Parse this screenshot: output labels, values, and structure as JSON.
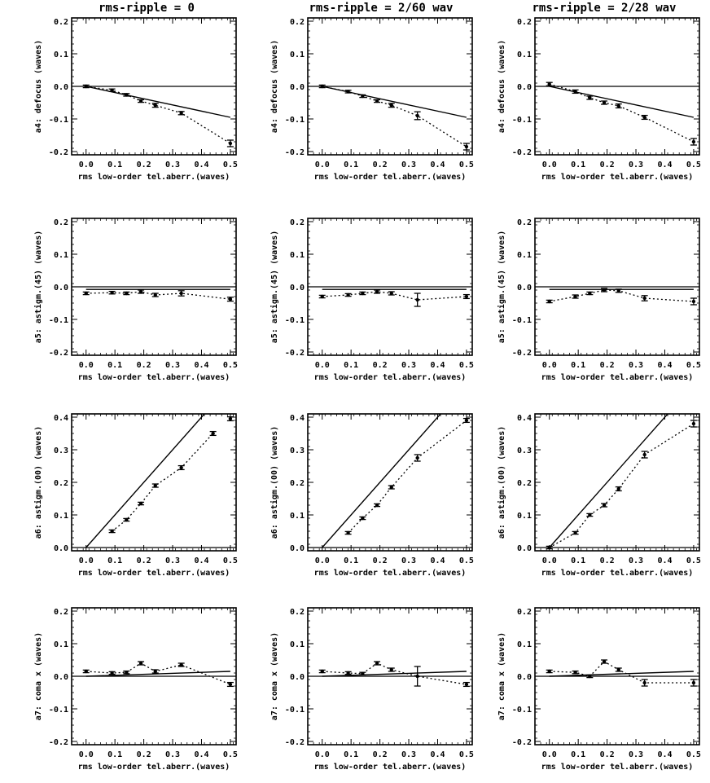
{
  "column_titles": [
    "rms-ripple = 0",
    "rms-ripple = 2/60 wav",
    "rms-ripple = 2/28 wav"
  ],
  "chart_data": [
    {
      "type": "line",
      "row": 0,
      "col": 0,
      "ylabel": "a4: defocus (waves)",
      "xlabel": "rms low-order tel.aberr.(waves)",
      "xticks": [
        "0.0",
        "0.1",
        "0.2",
        "0.3",
        "0.4",
        "0.5"
      ],
      "yticks": [
        "-0.2",
        "-0.1",
        "0.0",
        "0.1",
        "0.2"
      ],
      "xlim": [
        -0.05,
        0.52
      ],
      "ylim": [
        -0.21,
        0.21
      ],
      "series": [
        {
          "style": "dotted",
          "points": [
            [
              0.0,
              0.0
            ],
            [
              0.09,
              -0.012
            ],
            [
              0.14,
              -0.026
            ],
            [
              0.19,
              -0.045
            ],
            [
              0.24,
              -0.058
            ],
            [
              0.33,
              -0.082
            ],
            [
              0.5,
              -0.175
            ]
          ],
          "errors": [
            0.004,
            0.004,
            0.004,
            0.004,
            0.006,
            0.005,
            0.01
          ]
        },
        {
          "style": "solid",
          "points": [
            [
              0.0,
              0.0
            ],
            [
              0.5,
              -0.095
            ]
          ]
        }
      ]
    },
    {
      "type": "line",
      "row": 0,
      "col": 1,
      "ylabel": "a4: defocus (waves)",
      "xlabel": "rms low-order tel.aberr.(waves)",
      "xticks": [
        "0.0",
        "0.1",
        "0.2",
        "0.3",
        "0.4",
        "0.5"
      ],
      "yticks": [
        "-0.2",
        "-0.1",
        "0.0",
        "0.1",
        "0.2"
      ],
      "xlim": [
        -0.05,
        0.52
      ],
      "ylim": [
        -0.21,
        0.21
      ],
      "series": [
        {
          "style": "dotted",
          "points": [
            [
              0.0,
              0.0
            ],
            [
              0.09,
              -0.016
            ],
            [
              0.14,
              -0.03
            ],
            [
              0.19,
              -0.045
            ],
            [
              0.24,
              -0.058
            ],
            [
              0.33,
              -0.09
            ],
            [
              0.5,
              -0.185
            ]
          ],
          "errors": [
            0.004,
            0.004,
            0.004,
            0.004,
            0.006,
            0.012,
            0.01
          ]
        },
        {
          "style": "solid",
          "points": [
            [
              0.0,
              0.0
            ],
            [
              0.5,
              -0.095
            ]
          ]
        }
      ]
    },
    {
      "type": "line",
      "row": 0,
      "col": 2,
      "ylabel": "a4: defocus (waves)",
      "xlabel": "rms low-order tel.aberr.(waves)",
      "xticks": [
        "0.0",
        "0.1",
        "0.2",
        "0.3",
        "0.4",
        "0.5"
      ],
      "yticks": [
        "-0.2",
        "-0.1",
        "0.0",
        "0.1",
        "0.2"
      ],
      "xlim": [
        -0.05,
        0.52
      ],
      "ylim": [
        -0.21,
        0.21
      ],
      "series": [
        {
          "style": "dotted",
          "points": [
            [
              0.0,
              0.007
            ],
            [
              0.09,
              -0.016
            ],
            [
              0.14,
              -0.035
            ],
            [
              0.19,
              -0.05
            ],
            [
              0.24,
              -0.06
            ],
            [
              0.33,
              -0.095
            ],
            [
              0.5,
              -0.17
            ]
          ],
          "errors": [
            0.005,
            0.005,
            0.005,
            0.005,
            0.006,
            0.006,
            0.01
          ]
        },
        {
          "style": "solid",
          "points": [
            [
              0.0,
              0.0
            ],
            [
              0.5,
              -0.095
            ]
          ]
        }
      ]
    },
    {
      "type": "line",
      "row": 1,
      "col": 0,
      "ylabel": "a5: astigm.(45) (waves)",
      "xlabel": "rms low-order tel.aberr.(waves)",
      "xticks": [
        "0.0",
        "0.1",
        "0.2",
        "0.3",
        "0.4",
        "0.5"
      ],
      "yticks": [
        "-0.2",
        "-0.1",
        "0.0",
        "0.1",
        "0.2"
      ],
      "xlim": [
        -0.05,
        0.52
      ],
      "ylim": [
        -0.21,
        0.21
      ],
      "series": [
        {
          "style": "dotted",
          "points": [
            [
              0.0,
              -0.02
            ],
            [
              0.09,
              -0.018
            ],
            [
              0.14,
              -0.02
            ],
            [
              0.19,
              -0.015
            ],
            [
              0.24,
              -0.025
            ],
            [
              0.33,
              -0.02
            ],
            [
              0.5,
              -0.038
            ]
          ],
          "errors": [
            0.004,
            0.004,
            0.004,
            0.005,
            0.005,
            0.008,
            0.006
          ]
        },
        {
          "style": "solid",
          "points": [
            [
              0.0,
              -0.008
            ],
            [
              0.5,
              -0.008
            ]
          ]
        }
      ]
    },
    {
      "type": "line",
      "row": 1,
      "col": 1,
      "ylabel": "a5: astigm.(45) (waves)",
      "xlabel": "rms low-order tel.aberr.(waves)",
      "xticks": [
        "0.0",
        "0.1",
        "0.2",
        "0.3",
        "0.4",
        "0.5"
      ],
      "yticks": [
        "-0.2",
        "-0.1",
        "0.0",
        "0.1",
        "0.2"
      ],
      "xlim": [
        -0.05,
        0.52
      ],
      "ylim": [
        -0.21,
        0.21
      ],
      "series": [
        {
          "style": "dotted",
          "points": [
            [
              0.0,
              -0.03
            ],
            [
              0.09,
              -0.025
            ],
            [
              0.14,
              -0.02
            ],
            [
              0.19,
              -0.015
            ],
            [
              0.24,
              -0.02
            ],
            [
              0.33,
              -0.04
            ],
            [
              0.5,
              -0.03
            ]
          ],
          "errors": [
            0.004,
            0.004,
            0.004,
            0.005,
            0.005,
            0.02,
            0.006
          ]
        },
        {
          "style": "solid",
          "points": [
            [
              0.0,
              -0.008
            ],
            [
              0.5,
              -0.008
            ]
          ]
        }
      ]
    },
    {
      "type": "line",
      "row": 1,
      "col": 2,
      "ylabel": "a5: astigm.(45) (waves)",
      "xlabel": "rms low-order tel.aberr.(waves)",
      "xticks": [
        "0.0",
        "0.1",
        "0.2",
        "0.3",
        "0.4",
        "0.5"
      ],
      "yticks": [
        "-0.2",
        "-0.1",
        "0.0",
        "0.1",
        "0.2"
      ],
      "xlim": [
        -0.05,
        0.52
      ],
      "ylim": [
        -0.21,
        0.21
      ],
      "series": [
        {
          "style": "dotted",
          "points": [
            [
              0.0,
              -0.045
            ],
            [
              0.09,
              -0.03
            ],
            [
              0.14,
              -0.02
            ],
            [
              0.19,
              -0.01
            ],
            [
              0.24,
              -0.012
            ],
            [
              0.33,
              -0.035
            ],
            [
              0.5,
              -0.045
            ]
          ],
          "errors": [
            0.004,
            0.005,
            0.004,
            0.005,
            0.005,
            0.008,
            0.01
          ]
        },
        {
          "style": "solid",
          "points": [
            [
              0.0,
              -0.008
            ],
            [
              0.5,
              -0.008
            ]
          ]
        }
      ]
    },
    {
      "type": "line",
      "row": 2,
      "col": 0,
      "ylabel": "a6: astigm.(00) (waves)",
      "xlabel": "rms low-order tel.aberr.(waves)",
      "xticks": [
        "0.0",
        "0.1",
        "0.2",
        "0.3",
        "0.4",
        "0.5"
      ],
      "yticks": [
        "0.0",
        "0.1",
        "0.2",
        "0.3",
        "0.4"
      ],
      "xlim": [
        -0.05,
        0.52
      ],
      "ylim": [
        -0.01,
        0.41
      ],
      "series": [
        {
          "style": "dotted",
          "points": [
            [
              0.09,
              0.05
            ],
            [
              0.14,
              0.085
            ],
            [
              0.19,
              0.135
            ],
            [
              0.24,
              0.19
            ],
            [
              0.33,
              0.245
            ],
            [
              0.44,
              0.35
            ]
          ],
          "errors": [
            0.004,
            0.004,
            0.004,
            0.005,
            0.006,
            0.006
          ]
        },
        {
          "style": "solid",
          "points": [
            [
              0.0,
              0.0
            ],
            [
              0.42,
              0.42
            ]
          ]
        },
        {
          "style": "points",
          "points": [
            [
              0.5,
              0.395
            ]
          ],
          "errors": [
            0.006
          ]
        }
      ]
    },
    {
      "type": "line",
      "row": 2,
      "col": 1,
      "ylabel": "a6: astigm.(00) (waves)",
      "xlabel": "rms low-order tel.aberr.(waves)",
      "xticks": [
        "0.0",
        "0.1",
        "0.2",
        "0.3",
        "0.4",
        "0.5"
      ],
      "yticks": [
        "0.0",
        "0.1",
        "0.2",
        "0.3",
        "0.4"
      ],
      "xlim": [
        -0.05,
        0.52
      ],
      "ylim": [
        -0.01,
        0.41
      ],
      "series": [
        {
          "style": "dotted",
          "points": [
            [
              0.09,
              0.045
            ],
            [
              0.14,
              0.09
            ],
            [
              0.19,
              0.13
            ],
            [
              0.24,
              0.185
            ],
            [
              0.33,
              0.275
            ],
            [
              0.5,
              0.39
            ]
          ],
          "errors": [
            0.004,
            0.004,
            0.004,
            0.005,
            0.01,
            0.006
          ]
        },
        {
          "style": "solid",
          "points": [
            [
              0.0,
              0.0
            ],
            [
              0.42,
              0.42
            ]
          ]
        }
      ]
    },
    {
      "type": "line",
      "row": 2,
      "col": 2,
      "ylabel": "a6: astigm.(00) (waves)",
      "xlabel": "rms low-order tel.aberr.(waves)",
      "xticks": [
        "0.0",
        "0.1",
        "0.2",
        "0.3",
        "0.4",
        "0.5"
      ],
      "yticks": [
        "0.0",
        "0.1",
        "0.2",
        "0.3",
        "0.4"
      ],
      "xlim": [
        -0.05,
        0.52
      ],
      "ylim": [
        -0.01,
        0.41
      ],
      "series": [
        {
          "style": "dotted",
          "points": [
            [
              0.0,
              0.0
            ],
            [
              0.09,
              0.045
            ],
            [
              0.14,
              0.1
            ],
            [
              0.19,
              0.13
            ],
            [
              0.24,
              0.18
            ],
            [
              0.33,
              0.285
            ],
            [
              0.5,
              0.38
            ]
          ],
          "errors": [
            0.004,
            0.004,
            0.004,
            0.005,
            0.006,
            0.01,
            0.01
          ]
        },
        {
          "style": "solid",
          "points": [
            [
              0.0,
              0.0
            ],
            [
              0.42,
              0.42
            ]
          ]
        }
      ]
    },
    {
      "type": "line",
      "row": 3,
      "col": 0,
      "ylabel": "a7: coma x (waves)",
      "xlabel": "rms low-order tel.aberr.(waves)",
      "xticks": [
        "0.0",
        "0.1",
        "0.2",
        "0.3",
        "0.4",
        "0.5"
      ],
      "yticks": [
        "-0.2",
        "-0.1",
        "0.0",
        "0.1",
        "0.2"
      ],
      "xlim": [
        -0.05,
        0.52
      ],
      "ylim": [
        -0.21,
        0.21
      ],
      "series": [
        {
          "style": "dotted",
          "points": [
            [
              0.0,
              0.015
            ],
            [
              0.09,
              0.01
            ],
            [
              0.14,
              0.012
            ],
            [
              0.19,
              0.04
            ],
            [
              0.24,
              0.015
            ],
            [
              0.33,
              0.035
            ],
            [
              0.5,
              -0.025
            ]
          ],
          "errors": [
            0.004,
            0.004,
            0.004,
            0.005,
            0.005,
            0.005,
            0.006
          ]
        },
        {
          "style": "solid",
          "points": [
            [
              0.0,
              0.0
            ],
            [
              0.5,
              0.015
            ]
          ]
        }
      ]
    },
    {
      "type": "line",
      "row": 3,
      "col": 1,
      "ylabel": "a7: coma x (waves)",
      "xlabel": "rms low-order tel.aberr.(waves)",
      "xticks": [
        "0.0",
        "0.1",
        "0.2",
        "0.3",
        "0.4",
        "0.5"
      ],
      "yticks": [
        "-0.2",
        "-0.1",
        "0.0",
        "0.1",
        "0.2"
      ],
      "xlim": [
        -0.05,
        0.52
      ],
      "ylim": [
        -0.21,
        0.21
      ],
      "series": [
        {
          "style": "dotted",
          "points": [
            [
              0.0,
              0.015
            ],
            [
              0.09,
              0.01
            ],
            [
              0.14,
              0.008
            ],
            [
              0.19,
              0.04
            ],
            [
              0.24,
              0.02
            ],
            [
              0.33,
              0.0
            ],
            [
              0.5,
              -0.025
            ]
          ],
          "errors": [
            0.004,
            0.004,
            0.004,
            0.005,
            0.005,
            0.03,
            0.006
          ]
        },
        {
          "style": "solid",
          "points": [
            [
              0.0,
              0.0
            ],
            [
              0.5,
              0.015
            ]
          ]
        }
      ]
    },
    {
      "type": "line",
      "row": 3,
      "col": 2,
      "ylabel": "a7: coma x (waves)",
      "xlabel": "rms low-order tel.aberr.(waves)",
      "xticks": [
        "0.0",
        "0.1",
        "0.2",
        "0.3",
        "0.4",
        "0.5"
      ],
      "yticks": [
        "-0.2",
        "-0.1",
        "0.0",
        "0.1",
        "0.2"
      ],
      "xlim": [
        -0.05,
        0.52
      ],
      "ylim": [
        -0.21,
        0.21
      ],
      "series": [
        {
          "style": "dotted",
          "points": [
            [
              0.0,
              0.015
            ],
            [
              0.09,
              0.012
            ],
            [
              0.14,
              0.0
            ],
            [
              0.19,
              0.045
            ],
            [
              0.24,
              0.02
            ],
            [
              0.33,
              -0.02
            ],
            [
              0.5,
              -0.02
            ]
          ],
          "errors": [
            0.004,
            0.004,
            0.004,
            0.005,
            0.005,
            0.01,
            0.01
          ]
        },
        {
          "style": "solid",
          "points": [
            [
              0.0,
              0.0
            ],
            [
              0.5,
              0.015
            ]
          ]
        }
      ]
    }
  ]
}
